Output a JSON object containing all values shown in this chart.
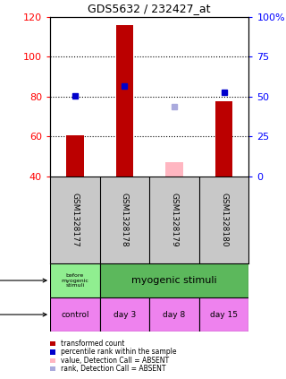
{
  "title": "GDS5632 / 232427_at",
  "samples": [
    "GSM1328177",
    "GSM1328178",
    "GSM1328179",
    "GSM1328180"
  ],
  "x_positions": [
    0,
    1,
    2,
    3
  ],
  "bar_bottom": 40,
  "red_bars": [
    60.5,
    116.0,
    47.0,
    77.5
  ],
  "red_bars_absent": [
    false,
    false,
    true,
    false
  ],
  "blue_squares": [
    80.5,
    85.5,
    75.0,
    82.0
  ],
  "blue_squares_absent": [
    false,
    false,
    true,
    false
  ],
  "ylim": [
    40,
    120
  ],
  "y_ticks": [
    40,
    60,
    80,
    100,
    120
  ],
  "y_tick_labels": [
    "40",
    "60",
    "80",
    "100",
    "120"
  ],
  "y2_tick_labels": [
    "0",
    "25",
    "50",
    "75",
    "100%"
  ],
  "dotted_lines": [
    60,
    80,
    100
  ],
  "time_labels": [
    "control",
    "day 3",
    "day 8",
    "day 15"
  ],
  "protocol_color_light": "#90EE90",
  "protocol_color_dark": "#5CB85C",
  "time_color": "#EE82EE",
  "sample_bg_color": "#C8C8C8",
  "bar_width": 0.35,
  "red_color": "#BB0000",
  "blue_color": "#0000CC",
  "pink_color": "#FFB6C1",
  "light_blue_color": "#AAAADD",
  "legend_items": [
    {
      "label": "transformed count",
      "color": "#BB0000"
    },
    {
      "label": "percentile rank within the sample",
      "color": "#0000CC"
    },
    {
      "label": "value, Detection Call = ABSENT",
      "color": "#FFB6C1"
    },
    {
      "label": "rank, Detection Call = ABSENT",
      "color": "#AAAADD"
    }
  ]
}
